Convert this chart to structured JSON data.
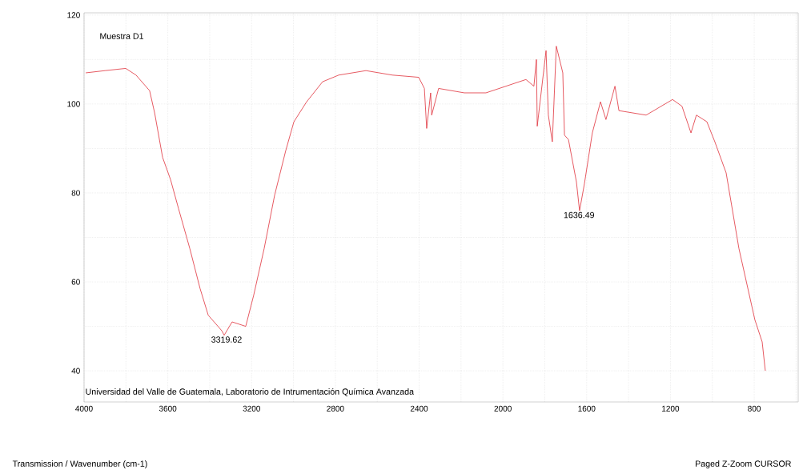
{
  "chart_data": {
    "type": "line",
    "annotations": [
      "Muestra D1",
      {
        "text": "3319.62",
        "x": 3319.62,
        "y": 48
      },
      {
        "text": "1636.49",
        "x": 1636.49,
        "y": 76
      },
      "Universidad del Valle de Guatemala, Laboratorio de Intrumentación Química Avanzada",
      "Paged  Z-Zoom CURSOR",
      "Transmission / Wavenumber (cm-1)"
    ],
    "x": [
      3992,
      3900,
      3801,
      3752,
      3687,
      3663,
      3625,
      3587,
      3549,
      3495,
      3446,
      3407,
      3342,
      3331,
      3293,
      3228,
      3190,
      3140,
      3090,
      3037,
      2998,
      2937,
      2861,
      2784,
      2654,
      2528,
      2402,
      2375,
      2364,
      2345,
      2340,
      2307,
      2184,
      2081,
      1890,
      1852,
      1840,
      1836,
      1794,
      1783,
      1764,
      1745,
      1714,
      1706,
      1687,
      1649,
      1634,
      1611,
      1573,
      1534,
      1508,
      1465,
      1446,
      1316,
      1190,
      1145,
      1102,
      1076,
      1026,
      988,
      934,
      873,
      797,
      762,
      747
    ],
    "values": [
      107,
      107.5,
      108,
      106.5,
      103,
      98,
      88,
      83,
      76.5,
      67.5,
      58.5,
      52.5,
      49,
      48,
      51,
      50,
      57,
      67.5,
      79.5,
      89.5,
      96,
      100.5,
      105,
      106.5,
      107.5,
      106.5,
      106,
      103.5,
      94.5,
      102.5,
      97.5,
      103.5,
      102.5,
      102.5,
      105.5,
      104,
      110,
      95,
      112,
      97.5,
      91.5,
      113,
      107,
      93,
      92,
      82.5,
      76,
      82,
      93.5,
      100.5,
      96.5,
      104,
      98.5,
      97.5,
      101,
      99.5,
      93.5,
      97.5,
      96,
      91.5,
      84.5,
      67.5,
      51.5,
      46.5,
      40
    ],
    "color": "#e0303a",
    "xlim": [
      4000,
      590
    ],
    "ylim": [
      33,
      120.5
    ],
    "xticks": [
      4000,
      {
        "value": 3800,
        "label": null
      },
      3600,
      {
        "value": 3400,
        "label": null
      },
      3200,
      {
        "value": 3000,
        "label": null
      },
      2800,
      {
        "value": 2600,
        "label": null
      },
      2400,
      {
        "value": 2200,
        "label": null
      },
      2000,
      {
        "value": 1800,
        "label": null
      },
      1600,
      {
        "value": 1400,
        "label": null
      },
      1200,
      {
        "value": 1000,
        "label": null
      },
      800,
      {
        "value": 600,
        "label": null
      }
    ],
    "yticks": [
      40,
      {
        "value": 50,
        "label": null
      },
      60,
      {
        "value": 70,
        "label": null
      },
      80,
      {
        "value": 90,
        "label": null
      },
      100,
      {
        "value": 110,
        "label": null
      },
      120
    ],
    "grid": true,
    "marker": "none",
    "line_style": "solid"
  }
}
